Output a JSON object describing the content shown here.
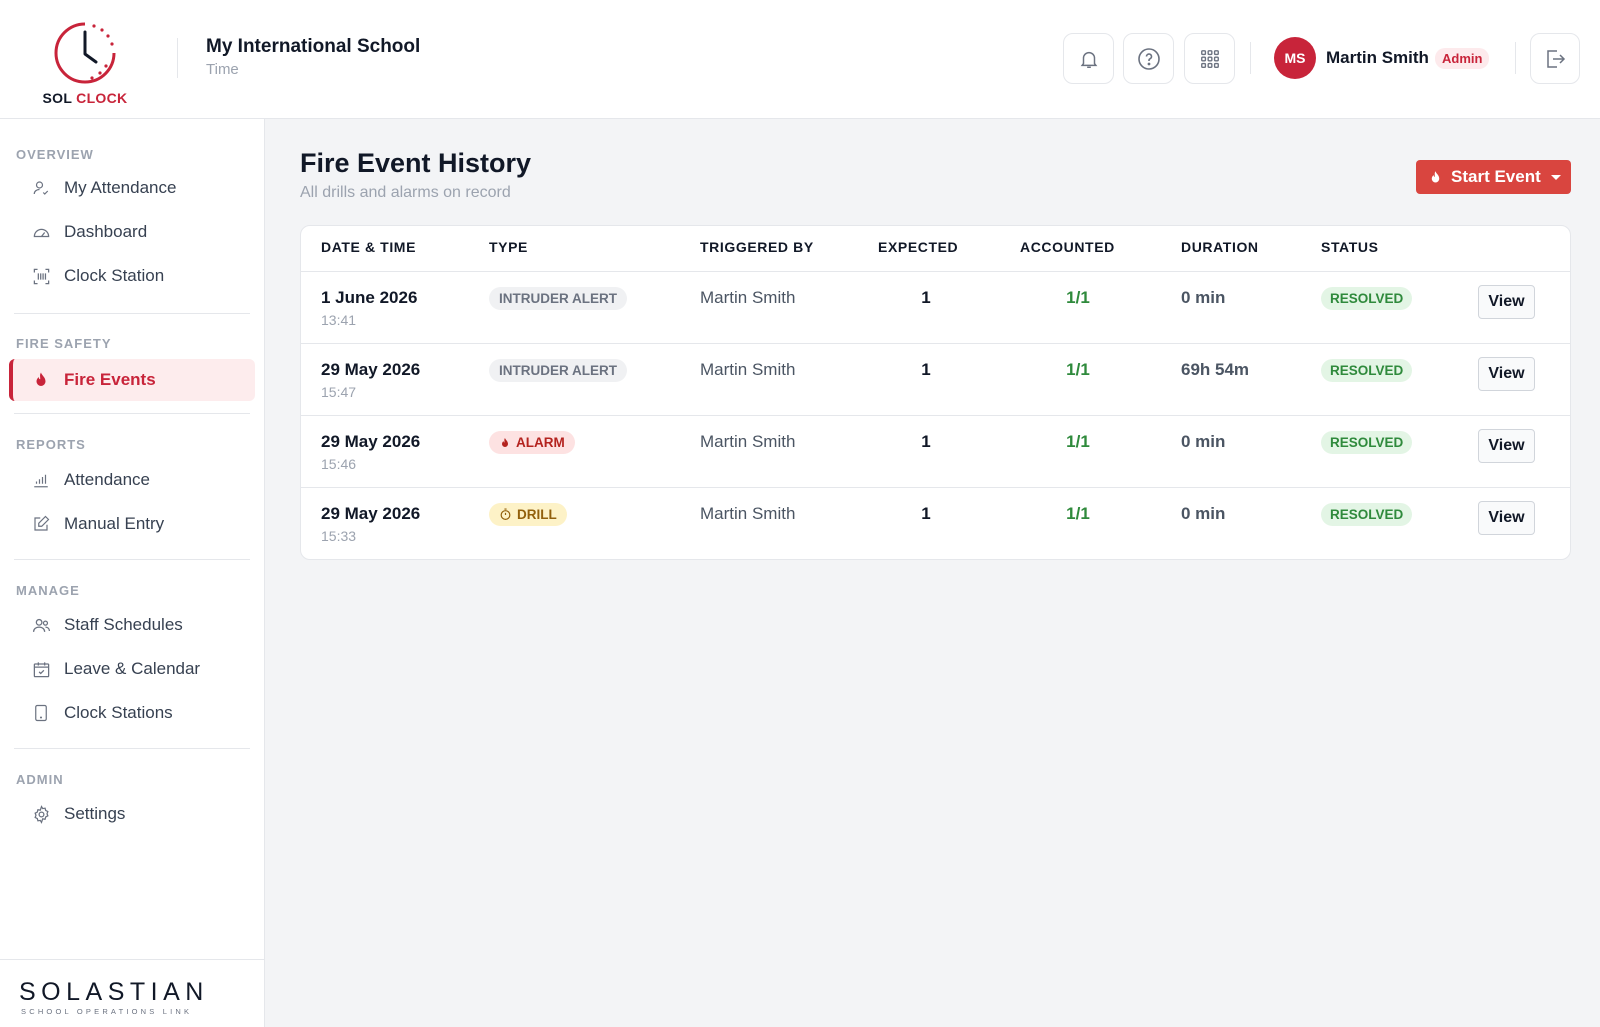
{
  "header": {
    "logo_word1": "SOL",
    "logo_word2": "CLOCK",
    "school_name": "My International School",
    "school_sub": "Time",
    "user_initials": "MS",
    "user_name": "Martin Smith",
    "user_role": "Admin",
    "icons": [
      "bell-icon",
      "help-icon",
      "apps-grid-icon",
      "logout-icon"
    ]
  },
  "sidebar": {
    "sections": {
      "overview": "OVERVIEW",
      "fire_safety": "FIRE SAFETY",
      "reports": "REPORTS",
      "manage": "MANAGE",
      "admin": "ADMIN"
    },
    "items": {
      "my_attendance": "My Attendance",
      "dashboard": "Dashboard",
      "clock_station": "Clock Station",
      "fire_events": "Fire Events",
      "attendance": "Attendance",
      "manual_entry": "Manual Entry",
      "staff_schedules": "Staff Schedules",
      "leave_calendar": "Leave & Calendar",
      "clock_stations": "Clock Stations",
      "settings": "Settings"
    },
    "active_item": "Fire Events",
    "footer_brand": "SOLASTIAN",
    "footer_sub": "SCHOOL OPERATIONS LINK"
  },
  "main": {
    "title": "Fire Event History",
    "subtitle": "All drills and alarms on record",
    "start_button": "Start Event",
    "columns": {
      "date": "DATE & TIME",
      "type": "TYPE",
      "triggered": "TRIGGERED BY",
      "expected": "EXPECTED",
      "accounted": "ACCOUNTED",
      "duration": "DURATION",
      "status": "STATUS"
    },
    "rows": [
      {
        "date": "1 June 2026",
        "time": "13:41",
        "type": "INTRUDER ALERT",
        "triggered": "Martin Smith",
        "expected": "1",
        "accounted": "1/1",
        "duration": "0 min",
        "status": "RESOLVED",
        "action": "View"
      },
      {
        "date": "29 May 2026",
        "time": "15:47",
        "type": "INTRUDER ALERT",
        "triggered": "Martin Smith",
        "expected": "1",
        "accounted": "1/1",
        "duration": "69h 54m",
        "status": "RESOLVED",
        "action": "View"
      },
      {
        "date": "29 May 2026",
        "time": "15:46",
        "type": "ALARM",
        "triggered": "Martin Smith",
        "expected": "1",
        "accounted": "1/1",
        "duration": "0 min",
        "status": "RESOLVED",
        "action": "View"
      },
      {
        "date": "29 May 2026",
        "time": "15:33",
        "type": "DRILL",
        "triggered": "Martin Smith",
        "expected": "1",
        "accounted": "1/1",
        "duration": "0 min",
        "status": "RESOLVED",
        "action": "View"
      }
    ]
  },
  "colors": {
    "brand_red": "#c8243a",
    "start_button": "#d9453f",
    "accounted_green": "#2f8a3c"
  }
}
